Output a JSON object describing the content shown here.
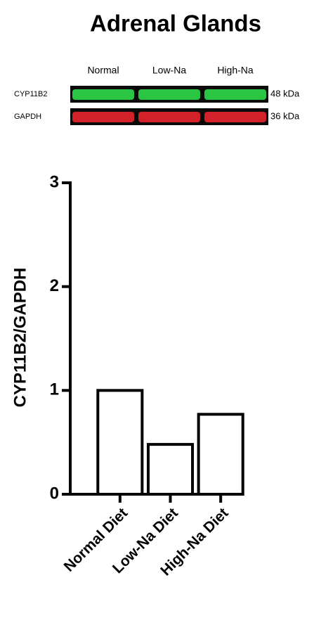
{
  "chart_data": {
    "type": "bar",
    "title": "Adrenal Glands",
    "ylabel": "CYP11B2/GAPDH",
    "categories": [
      "Normal Diet",
      "Low-Na Diet",
      "High-Na Diet"
    ],
    "values": [
      1.0,
      0.48,
      0.77
    ],
    "color": "#ffffff",
    "edgecolor": "#000000",
    "ylim": [
      0,
      3
    ],
    "yticks": [
      0,
      1,
      2,
      3
    ],
    "grid": false
  },
  "blot": {
    "lanes": [
      "Normal",
      "Low-Na",
      "High-Na"
    ],
    "rows": [
      {
        "name": "CYP11B2",
        "size": "48 kDa",
        "color": "#2fd94a"
      },
      {
        "name": "GAPDH",
        "size": "36 kDa",
        "color": "#e8232b"
      }
    ]
  }
}
